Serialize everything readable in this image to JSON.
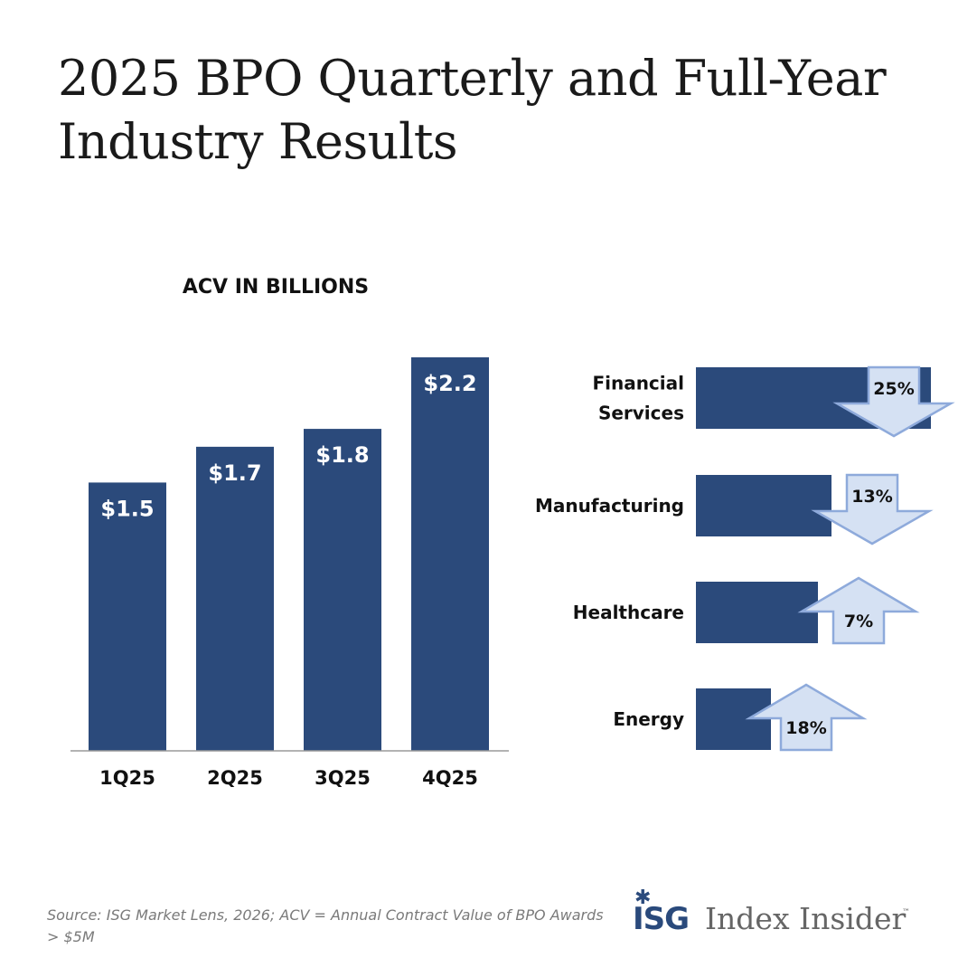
{
  "title": "2025 BPO Quarterly and Full-Year Industry Results",
  "chart_data": [
    {
      "type": "bar",
      "title": "ACV IN BILLIONS",
      "categories": [
        "1Q25",
        "2Q25",
        "3Q25",
        "4Q25"
      ],
      "values": [
        1.5,
        1.7,
        1.8,
        2.2
      ],
      "value_labels": [
        "$1.5",
        "$1.7",
        "$1.8",
        "$2.2"
      ],
      "ylim": [
        0,
        2.2
      ],
      "xlabel": "",
      "ylabel": "",
      "bar_color": "#2b4a7b"
    },
    {
      "type": "bar",
      "orientation": "horizontal",
      "categories": [
        "Financial Services",
        "Manufacturing",
        "Healthcare",
        "Energy"
      ],
      "label_lines": [
        [
          "Financial",
          "Services"
        ],
        [
          "Manufacturing"
        ],
        [
          "Healthcare"
        ],
        [
          "Energy"
        ]
      ],
      "change_labels": [
        "25%",
        "13%",
        "7%",
        "18%"
      ],
      "change_direction": [
        "down",
        "down",
        "up",
        "up"
      ],
      "bar_color": "#2b4a7b",
      "arrow_fill": "#d5e1f3",
      "arrow_stroke": "#8eaadb"
    }
  ],
  "footer": {
    "source": "Source: ISG Market Lens, 2026; ACV = Annual Contract Value of BPO Awards > $5M"
  },
  "brand": {
    "logo_text": "ISG",
    "product": "Index Insider",
    "trademark": "™"
  }
}
